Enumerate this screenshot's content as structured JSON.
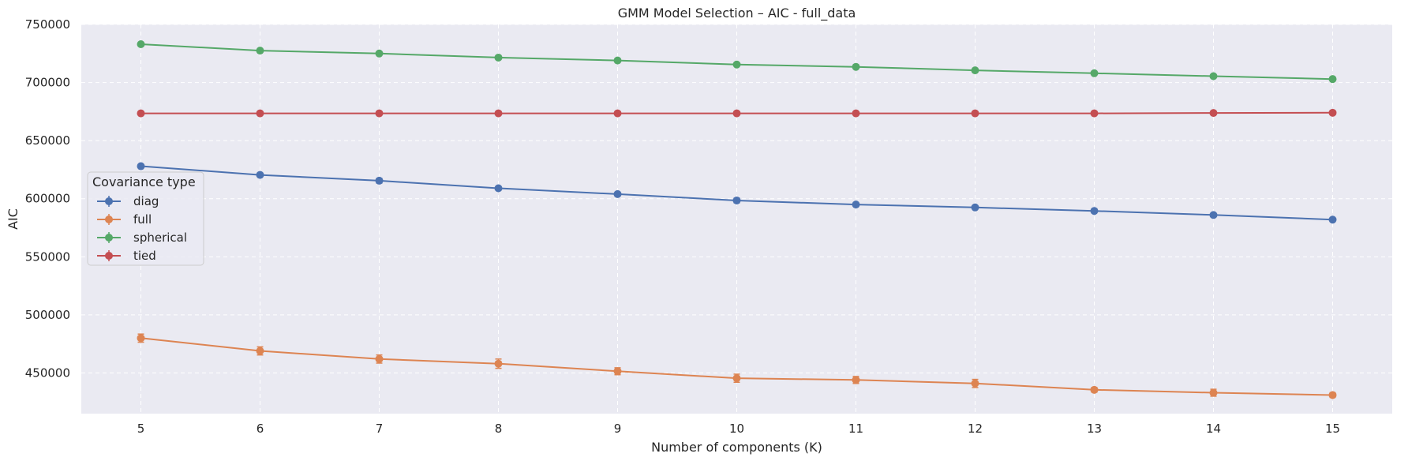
{
  "chart_data": {
    "type": "line",
    "title": "GMM Model Selection – AIC - full_data",
    "xlabel": "Number of components (K)",
    "ylabel": "AIC",
    "x": [
      5,
      6,
      7,
      8,
      9,
      10,
      11,
      12,
      13,
      14,
      15
    ],
    "xlim": [
      4.5,
      15.5
    ],
    "ylim": [
      415000,
      750000
    ],
    "yticks": [
      450000,
      500000,
      550000,
      600000,
      650000,
      700000,
      750000
    ],
    "ytick_labels": [
      "450000",
      "500000",
      "550000",
      "600000",
      "650000",
      "700000",
      "750000"
    ],
    "xtick_labels": [
      "5",
      "6",
      "7",
      "8",
      "9",
      "10",
      "11",
      "12",
      "13",
      "14",
      "15"
    ],
    "grid": true,
    "legend": {
      "title": "Covariance type",
      "placement": "center-left"
    },
    "series": [
      {
        "name": "diag",
        "color": "#4c72b0",
        "values": [
          628000,
          620500,
          615500,
          609000,
          604000,
          598500,
          595000,
          592500,
          589500,
          586000,
          582000
        ],
        "errors": [
          1500,
          1500,
          2000,
          1500,
          1500,
          2000,
          1500,
          1500,
          1500,
          1500,
          1500
        ]
      },
      {
        "name": "full",
        "color": "#dd8452",
        "values": [
          480000,
          469000,
          462000,
          458000,
          451500,
          445500,
          444000,
          441000,
          435500,
          433000,
          431000
        ],
        "errors": [
          3500,
          3500,
          3500,
          4000,
          3000,
          3500,
          3000,
          3500,
          2000,
          3000,
          2000
        ]
      },
      {
        "name": "spherical",
        "color": "#55a868",
        "values": [
          733000,
          727500,
          725000,
          721500,
          719000,
          715500,
          713500,
          710500,
          708000,
          705500,
          703000
        ],
        "errors": [
          1000,
          1000,
          1000,
          1000,
          1000,
          1000,
          1000,
          1000,
          1000,
          1000,
          1000
        ]
      },
      {
        "name": "tied",
        "color": "#c44e52",
        "values": [
          673500,
          673500,
          673500,
          673500,
          673500,
          673500,
          673500,
          673500,
          673500,
          673800,
          674000
        ],
        "errors": [
          500,
          500,
          500,
          500,
          500,
          500,
          500,
          500,
          500,
          500,
          500
        ]
      }
    ]
  }
}
